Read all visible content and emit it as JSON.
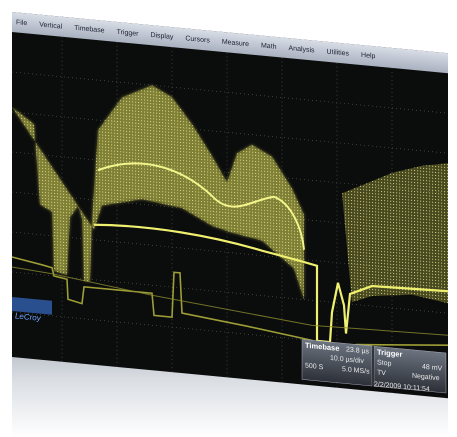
{
  "menu": [
    "File",
    "Vertical",
    "Timebase",
    "Trigger",
    "Display",
    "Cursors",
    "Measure",
    "Math",
    "Analysis",
    "Utilities",
    "Help"
  ],
  "timebase": {
    "label": "Timebase",
    "delay": "23.8 µs",
    "scale": "10.0 µs/div",
    "samples": "500 S",
    "rate": "5.0 MS/s"
  },
  "trigger": {
    "label": "Trigger",
    "mode": "Stop",
    "level": "48 mV",
    "type": "TV",
    "slope": "Negative"
  },
  "timestamp": "2/2/2009 10:11:54",
  "brand": "LeCroy"
}
